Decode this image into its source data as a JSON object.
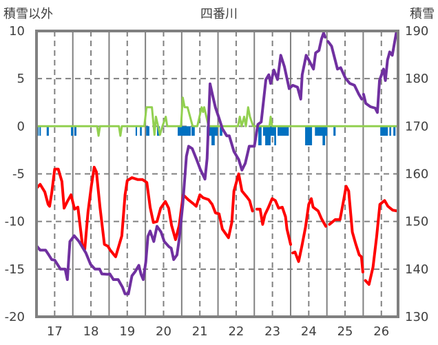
{
  "chart_data": {
    "type": "line",
    "title": "四番川",
    "ylabel_left": "積雪以外",
    "ylabel_right": "積雪",
    "xlim": [
      16.5,
      26.46
    ],
    "ylim_left": [
      -20,
      10
    ],
    "ylim_right": [
      130,
      190
    ],
    "yticks_left": [
      "10",
      "5",
      "0",
      "-5",
      "-10",
      "-15",
      "-20"
    ],
    "yticks_right": [
      "190",
      "180",
      "170",
      "160",
      "150",
      "140",
      "130"
    ],
    "xticks": [
      "17",
      "18",
      "19",
      "20",
      "21",
      "22",
      "23",
      "24",
      "25",
      "26"
    ],
    "grid": true,
    "colors": {
      "red": "#FF0000",
      "purple": "#7030A0",
      "green": "#92D050",
      "blue": "#0070C0",
      "frame": "#808080"
    },
    "series": [
      {
        "name": "red",
        "axis": "left",
        "points": [
          [
            16.5,
            -6.5
          ],
          [
            16.6,
            -6.1
          ],
          [
            16.73,
            -6.9
          ],
          [
            16.82,
            -8.2
          ],
          [
            16.86,
            -8.4
          ],
          [
            16.92,
            -7.0
          ],
          [
            17.0,
            -4.5
          ],
          [
            17.1,
            -4.5
          ],
          [
            17.2,
            -5.8
          ],
          [
            17.26,
            -8.6
          ],
          [
            17.35,
            -7.9
          ],
          [
            17.45,
            -7.2
          ],
          [
            17.55,
            -8.7
          ],
          [
            17.64,
            -8.5
          ],
          [
            17.77,
            -12.6
          ],
          [
            17.83,
            -12.9
          ],
          [
            17.92,
            -9.0
          ],
          [
            18.01,
            -6.3
          ],
          [
            18.09,
            -4.3
          ],
          [
            18.15,
            -4.8
          ],
          [
            18.25,
            -8.5
          ],
          [
            18.37,
            -12.4
          ],
          [
            18.47,
            -12.6
          ],
          [
            18.53,
            -13.0
          ],
          [
            18.68,
            -13.7
          ],
          [
            18.85,
            -11.5
          ],
          [
            18.94,
            -7.2
          ],
          [
            19.0,
            -5.7
          ],
          [
            19.13,
            -5.4
          ],
          [
            19.29,
            -5.6
          ],
          [
            19.42,
            -5.6
          ],
          [
            19.54,
            -5.9
          ],
          [
            19.63,
            -8.5
          ],
          [
            19.72,
            -10.1
          ],
          [
            19.82,
            -10.0
          ],
          [
            19.92,
            -8.6
          ],
          [
            20.05,
            -7.9
          ],
          [
            20.14,
            -8.6
          ],
          [
            20.22,
            -10.4
          ],
          [
            20.33,
            -11.9
          ],
          [
            20.43,
            -10.4
          ],
          [
            20.54,
            -7.2
          ],
          [
            20.68,
            -7.7
          ],
          [
            20.81,
            -8.1
          ],
          [
            20.9,
            -8.4
          ],
          [
            21.0,
            -7.2
          ],
          [
            21.09,
            -7.5
          ],
          [
            21.24,
            -7.7
          ],
          [
            21.34,
            -8.2
          ],
          [
            21.43,
            -9.1
          ],
          [
            21.53,
            -9.2
          ],
          [
            21.62,
            -10.8
          ],
          [
            21.79,
            -11.7
          ],
          [
            21.88,
            -10.1
          ],
          [
            21.94,
            -6.8
          ],
          [
            22.07,
            -5.0
          ],
          [
            22.16,
            -6.8
          ],
          [
            22.29,
            -7.4
          ],
          [
            22.37,
            -7.8
          ],
          [
            22.45,
            -8.9
          ],
          null,
          [
            22.57,
            -8.7
          ],
          [
            22.66,
            -8.7
          ],
          [
            22.73,
            -10.3
          ],
          [
            22.79,
            -9.3
          ],
          [
            22.88,
            -8.6
          ],
          [
            22.99,
            -7.6
          ],
          [
            23.08,
            -7.8
          ],
          [
            23.17,
            -8.6
          ],
          [
            23.27,
            -8.5
          ],
          [
            23.36,
            -9.5
          ],
          [
            23.4,
            -10.8
          ],
          [
            23.5,
            -12.4
          ],
          null,
          [
            23.56,
            -13.3
          ],
          [
            23.62,
            -13.2
          ],
          [
            23.72,
            -14.2
          ],
          [
            23.81,
            -12.6
          ],
          [
            23.91,
            -10.6
          ],
          [
            24.0,
            -8.2
          ],
          [
            24.07,
            -7.6
          ],
          [
            24.12,
            -8.5
          ],
          [
            24.26,
            -8.9
          ],
          [
            24.35,
            -9.7
          ],
          [
            24.47,
            -10.5
          ],
          null,
          [
            24.57,
            -10.3
          ],
          [
            24.73,
            -9.8
          ],
          [
            24.86,
            -9.8
          ],
          [
            24.95,
            -8.0
          ],
          [
            25.03,
            -6.3
          ],
          [
            25.1,
            -6.8
          ],
          [
            25.2,
            -11.1
          ],
          [
            25.29,
            -12.3
          ],
          [
            25.39,
            -13.5
          ],
          [
            25.45,
            -13.7
          ],
          [
            25.49,
            -15.3
          ],
          null,
          [
            25.56,
            -16.2
          ],
          [
            25.66,
            -16.6
          ],
          [
            25.77,
            -14.8
          ],
          [
            25.87,
            -11.6
          ],
          [
            25.96,
            -8.2
          ],
          [
            26.09,
            -7.8
          ],
          [
            26.18,
            -8.4
          ],
          [
            26.31,
            -8.8
          ],
          [
            26.44,
            -8.9
          ]
        ]
      },
      {
        "name": "purple",
        "axis": "right",
        "points": [
          [
            16.5,
            144.9
          ],
          [
            16.6,
            144.0
          ],
          [
            16.75,
            144.0
          ],
          [
            16.82,
            143.2
          ],
          [
            16.92,
            142.0
          ],
          [
            17.0,
            141.9
          ],
          [
            17.16,
            140.0
          ],
          [
            17.29,
            140.0
          ],
          [
            17.35,
            137.8
          ],
          [
            17.42,
            145.8
          ],
          [
            17.54,
            147.0
          ],
          [
            17.67,
            145.8
          ],
          [
            17.86,
            143.4
          ],
          [
            17.99,
            141.0
          ],
          [
            18.11,
            140.0
          ],
          [
            18.24,
            140.0
          ],
          [
            18.3,
            139.0
          ],
          [
            18.46,
            138.9
          ],
          [
            18.52,
            139.0
          ],
          [
            18.62,
            137.8
          ],
          [
            18.75,
            137.8
          ],
          [
            18.87,
            136.2
          ],
          [
            18.94,
            134.8
          ],
          [
            19.03,
            134.8
          ],
          [
            19.13,
            138.6
          ],
          [
            19.22,
            139.5
          ],
          [
            19.32,
            140.8
          ],
          [
            19.38,
            138.9
          ],
          [
            19.44,
            137.8
          ],
          [
            19.51,
            141.5
          ],
          [
            19.57,
            146.9
          ],
          [
            19.63,
            148.0
          ],
          [
            19.73,
            145.8
          ],
          [
            19.82,
            149.0
          ],
          [
            19.93,
            147.8
          ],
          [
            20.02,
            145.8
          ],
          [
            20.15,
            144.7
          ],
          [
            20.21,
            144.4
          ],
          [
            20.28,
            142.0
          ],
          [
            20.37,
            143.0
          ],
          [
            20.43,
            146.3
          ],
          [
            20.53,
            153.6
          ],
          [
            20.63,
            163.7
          ],
          [
            20.69,
            165.8
          ],
          [
            20.79,
            165.3
          ],
          [
            20.91,
            163.0
          ],
          [
            21.01,
            161.0
          ],
          [
            21.14,
            158.9
          ],
          [
            21.2,
            163.2
          ],
          [
            21.28,
            178.9
          ],
          [
            21.36,
            176.2
          ],
          [
            21.43,
            173.9
          ],
          [
            21.52,
            171.9
          ],
          [
            21.62,
            169.5
          ],
          [
            21.74,
            168.0
          ],
          [
            21.81,
            168.0
          ],
          [
            21.94,
            164.7
          ],
          [
            22.07,
            163.0
          ],
          [
            22.16,
            160.8
          ],
          [
            22.25,
            162.2
          ],
          [
            22.36,
            165.8
          ],
          [
            22.5,
            165.8
          ],
          [
            22.6,
            170.4
          ],
          [
            22.69,
            170.9
          ],
          [
            22.82,
            179.8
          ],
          [
            22.9,
            180.8
          ],
          [
            22.95,
            179.0
          ],
          [
            23.04,
            181.8
          ],
          [
            23.14,
            179.8
          ],
          [
            23.23,
            184.9
          ],
          [
            23.33,
            182.5
          ],
          [
            23.46,
            177.9
          ],
          [
            23.56,
            178.6
          ],
          [
            23.69,
            178.2
          ],
          [
            23.78,
            175.7
          ],
          [
            23.82,
            180.8
          ],
          [
            23.93,
            184.9
          ],
          [
            24.03,
            183.5
          ],
          [
            24.13,
            182.0
          ],
          [
            24.19,
            185.4
          ],
          [
            24.28,
            185.9
          ],
          [
            24.35,
            188.3
          ],
          [
            24.41,
            189.6
          ],
          [
            24.45,
            188.7
          ],
          null,
          [
            24.53,
            187.8
          ],
          [
            24.63,
            186.8
          ],
          [
            24.79,
            182.0
          ],
          [
            24.88,
            182.3
          ],
          [
            25.01,
            180.1
          ],
          [
            25.13,
            179.0
          ],
          [
            25.26,
            178.6
          ],
          [
            25.38,
            176.7
          ],
          [
            25.46,
            175.7
          ],
          null,
          [
            25.51,
            176.7
          ],
          [
            25.57,
            174.8
          ],
          [
            25.7,
            174.1
          ],
          [
            25.83,
            173.8
          ],
          [
            25.89,
            172.9
          ],
          [
            25.95,
            179.6
          ],
          [
            26.06,
            182.0
          ],
          [
            26.11,
            179.6
          ],
          [
            26.17,
            183.9
          ],
          [
            26.23,
            185.6
          ],
          [
            26.3,
            184.9
          ],
          [
            26.42,
            190.0
          ]
        ]
      },
      {
        "name": "green",
        "axis": "left",
        "points": [
          [
            16.5,
            0
          ],
          [
            18.17,
            0
          ],
          [
            18.21,
            -1.0
          ],
          [
            18.25,
            0
          ],
          [
            18.77,
            0
          ],
          [
            18.81,
            -1.0
          ],
          [
            18.85,
            0
          ],
          [
            19.47,
            0
          ],
          [
            19.53,
            2.0
          ],
          [
            19.68,
            2.0
          ],
          [
            19.75,
            -0.9
          ],
          [
            19.79,
            1.0
          ],
          [
            19.85,
            0
          ],
          [
            19.9,
            -0.9
          ],
          [
            19.97,
            0
          ],
          [
            20.06,
            1.0
          ],
          [
            20.1,
            0
          ],
          [
            20.48,
            0
          ],
          [
            20.53,
            3.0
          ],
          [
            20.58,
            2.0
          ],
          [
            20.66,
            2.0
          ],
          [
            20.8,
            0
          ],
          [
            20.93,
            0
          ],
          [
            21.05,
            2.0
          ],
          [
            21.09,
            1.5
          ],
          [
            21.12,
            2.0
          ],
          [
            21.18,
            1.0
          ],
          [
            21.24,
            0
          ],
          [
            22.05,
            0
          ],
          [
            22.1,
            1.0
          ],
          [
            22.15,
            0
          ],
          [
            22.22,
            1.0
          ],
          [
            22.27,
            0
          ],
          [
            22.33,
            2.0
          ],
          [
            22.38,
            1.0
          ],
          [
            22.47,
            0
          ],
          [
            22.92,
            0
          ],
          [
            22.95,
            1.0
          ],
          [
            22.99,
            0
          ],
          [
            26.46,
            0
          ]
        ]
      }
    ],
    "blue_bars": {
      "axis": "left",
      "bars": [
        [
          16.52,
          16.56,
          -1
        ],
        [
          16.58,
          16.62,
          -1
        ],
        [
          16.78,
          16.84,
          -1
        ],
        [
          17.45,
          17.51,
          -1
        ],
        [
          17.54,
          17.6,
          -1
        ],
        [
          19.23,
          19.27,
          -1
        ],
        [
          19.35,
          19.4,
          -1
        ],
        [
          19.52,
          19.61,
          -1
        ],
        [
          19.82,
          19.9,
          -1
        ],
        [
          20.39,
          20.75,
          -1
        ],
        [
          20.77,
          20.86,
          -1
        ],
        [
          21.19,
          21.49,
          -1
        ],
        [
          21.32,
          21.41,
          -2
        ],
        [
          21.55,
          21.62,
          -1
        ],
        [
          22.61,
          22.7,
          -2
        ],
        [
          22.74,
          23.08,
          -1
        ],
        [
          22.8,
          22.95,
          -2
        ],
        [
          23.05,
          23.1,
          -2
        ],
        [
          23.14,
          23.45,
          -1
        ],
        [
          23.9,
          24.09,
          -2
        ],
        [
          24.17,
          24.51,
          -1
        ],
        [
          24.38,
          24.45,
          -2
        ],
        [
          24.68,
          24.74,
          -1
        ],
        [
          25.97,
          26.18,
          -1
        ],
        [
          26.22,
          26.27,
          -1
        ],
        [
          26.33,
          26.39,
          -1
        ],
        [
          26.42,
          26.46,
          -1
        ]
      ]
    }
  }
}
